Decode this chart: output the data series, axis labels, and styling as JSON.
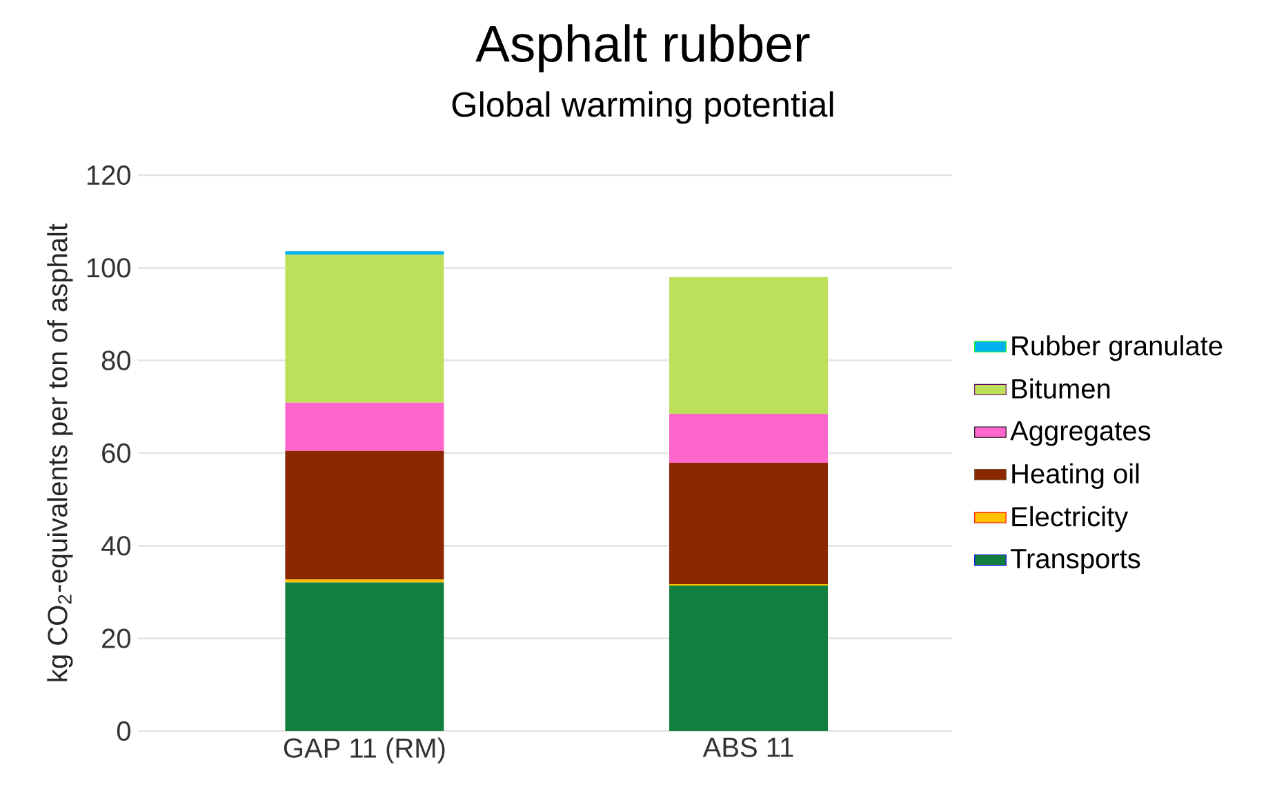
{
  "chart_data": {
    "type": "bar",
    "title": "Asphalt rubber",
    "subtitle": "Global warming potential",
    "ylabel": "kg CO$_{2}$-equivalents per ton of asphalt",
    "categories": [
      "GAP 11 (RM)",
      "ABS 11"
    ],
    "stacked": true,
    "series": [
      {
        "name": "Transports",
        "color": "#127f3f",
        "values": [
          32.1,
          31.4
        ]
      },
      {
        "name": "Electricity",
        "color": "#ffc000",
        "values": [
          0.6,
          0.3
        ]
      },
      {
        "name": "Heating oil",
        "color": "#8b2800",
        "values": [
          27.8,
          26.2
        ]
      },
      {
        "name": "Aggregates",
        "color": "#ff66cc",
        "values": [
          10.4,
          10.6
        ]
      },
      {
        "name": "Bitumen",
        "color": "#bce05a",
        "values": [
          31.9,
          29.5
        ]
      },
      {
        "name": "Rubber granulate",
        "color": "#00b0f0",
        "values": [
          0.8,
          0
        ]
      }
    ],
    "ylim": [
      0,
      120
    ],
    "yticks": [
      0,
      20,
      40,
      60,
      80,
      100,
      120
    ],
    "grid": "y",
    "legend": "right"
  }
}
